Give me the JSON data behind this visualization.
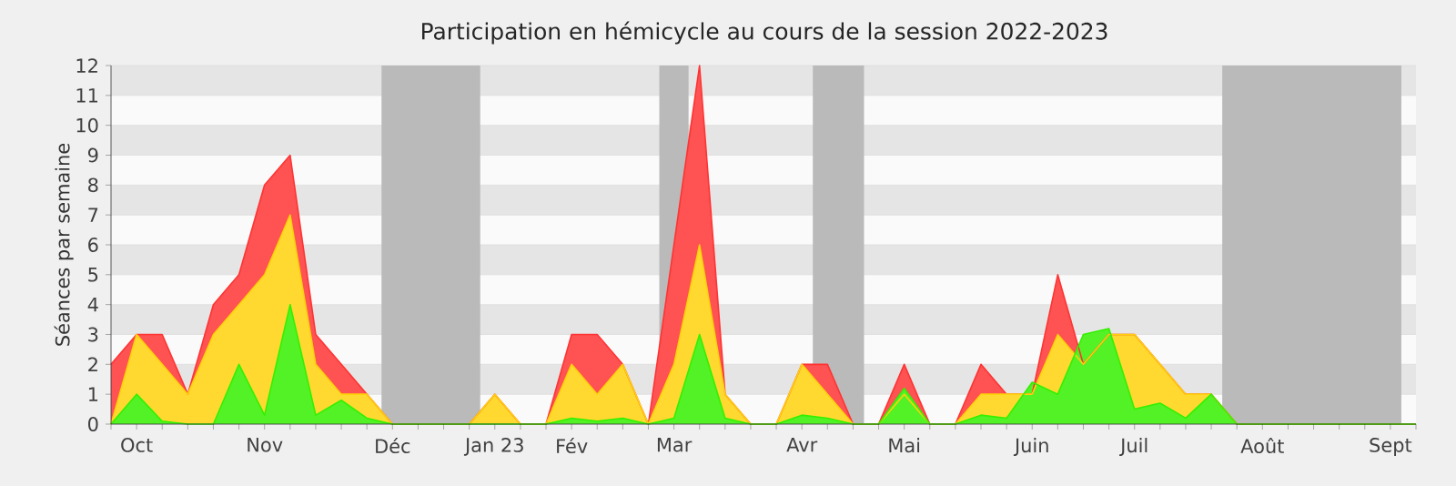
{
  "chart_data": {
    "type": "area",
    "title": "Participation en hémicycle au cours de la session 2022-2023",
    "ylabel": "Séances par semaine",
    "x": [
      "2022-09-28",
      "2022-10-05",
      "2022-10-12",
      "2022-10-19",
      "2022-10-26",
      "2022-11-02",
      "2022-11-09",
      "2022-11-16",
      "2022-11-23",
      "2022-11-30",
      "2022-12-07",
      "2022-12-14",
      "2022-12-21",
      "2022-12-28",
      "2023-01-04",
      "2023-01-11",
      "2023-01-18",
      "2023-01-25",
      "2023-02-01",
      "2023-02-08",
      "2023-02-15",
      "2023-02-22",
      "2023-03-01",
      "2023-03-08",
      "2023-03-15",
      "2023-03-22",
      "2023-03-29",
      "2023-04-05",
      "2023-04-12",
      "2023-04-19",
      "2023-04-26",
      "2023-05-03",
      "2023-05-10",
      "2023-05-17",
      "2023-05-24",
      "2023-05-31",
      "2023-06-07",
      "2023-06-14",
      "2023-06-21",
      "2023-06-28",
      "2023-07-05",
      "2023-07-12",
      "2023-07-19",
      "2023-07-26",
      "2023-08-02",
      "2023-08-09",
      "2023-08-16",
      "2023-08-23",
      "2023-08-30",
      "2023-09-06",
      "2023-09-13",
      "2023-09-20"
    ],
    "series": [
      {
        "color": "#ff3333",
        "values": [
          2,
          3,
          3,
          1,
          4,
          5,
          8,
          9,
          3,
          2,
          1,
          0,
          0,
          0,
          0,
          1,
          0,
          0,
          3,
          3,
          2,
          0,
          6,
          12,
          1,
          0,
          0,
          2,
          2,
          0,
          0,
          2,
          0,
          0,
          2,
          1,
          1,
          5,
          2,
          3,
          3,
          2,
          1,
          1,
          0,
          0,
          0,
          0,
          0,
          0,
          0,
          0
        ]
      },
      {
        "color": "#ffd20a",
        "values": [
          0,
          3,
          2,
          1,
          3,
          4,
          5,
          7,
          2,
          1,
          1,
          0,
          0,
          0,
          0,
          1,
          0,
          0,
          2,
          1,
          2,
          0,
          2,
          6,
          1,
          0,
          0,
          2,
          1,
          0,
          0,
          1,
          0,
          0,
          1,
          1,
          1,
          3,
          2,
          3,
          3,
          2,
          1,
          1,
          0,
          0,
          0,
          0,
          0,
          0,
          0,
          0
        ]
      },
      {
        "color": "#33f000",
        "values": [
          0,
          1,
          0.1,
          0,
          0,
          2,
          0.3,
          4,
          0.3,
          0.8,
          0.2,
          0,
          0,
          0,
          0,
          0,
          0,
          0,
          0.2,
          0.1,
          0.2,
          0,
          0.2,
          3,
          0.2,
          0,
          0,
          0.3,
          0.2,
          0,
          0,
          1.2,
          0,
          0,
          0.3,
          0.2,
          1.4,
          1,
          3,
          3.2,
          0.5,
          0.7,
          0.2,
          1,
          0,
          0,
          0,
          0,
          0,
          0,
          0,
          0
        ]
      }
    ],
    "xlim": [
      "2022-09-28",
      "2023-09-20"
    ],
    "xticks": [
      {
        "value": "2022-09-28",
        "label": null
      },
      {
        "value": "2022-10-05",
        "label": "Oct"
      },
      {
        "value": "2022-10-12",
        "label": null
      },
      {
        "value": "2022-10-19",
        "label": null
      },
      {
        "value": "2022-10-26",
        "label": null
      },
      {
        "value": "2022-11-02",
        "label": null
      },
      {
        "value": "2022-11-09",
        "label": "Nov"
      },
      {
        "value": "2022-11-16",
        "label": null
      },
      {
        "value": "2022-11-23",
        "label": null
      },
      {
        "value": "2022-11-30",
        "label": null
      },
      {
        "value": "2022-12-07",
        "label": null
      },
      {
        "value": "2022-12-14",
        "label": "Déc"
      },
      {
        "value": "2022-12-21",
        "label": null
      },
      {
        "value": "2022-12-28",
        "label": null
      },
      {
        "value": "2023-01-04",
        "label": null
      },
      {
        "value": "2023-01-11",
        "label": "Jan 23"
      },
      {
        "value": "2023-01-18",
        "label": null
      },
      {
        "value": "2023-01-25",
        "label": null
      },
      {
        "value": "2023-02-01",
        "label": "Fév"
      },
      {
        "value": "2023-02-08",
        "label": null
      },
      {
        "value": "2023-02-15",
        "label": null
      },
      {
        "value": "2023-02-22",
        "label": null
      },
      {
        "value": "2023-03-01",
        "label": "Mar"
      },
      {
        "value": "2023-03-08",
        "label": null
      },
      {
        "value": "2023-03-15",
        "label": null
      },
      {
        "value": "2023-03-22",
        "label": null
      },
      {
        "value": "2023-03-29",
        "label": null
      },
      {
        "value": "2023-04-05",
        "label": "Avr"
      },
      {
        "value": "2023-04-12",
        "label": null
      },
      {
        "value": "2023-04-19",
        "label": null
      },
      {
        "value": "2023-04-26",
        "label": null
      },
      {
        "value": "2023-05-03",
        "label": "Mai"
      },
      {
        "value": "2023-05-10",
        "label": null
      },
      {
        "value": "2023-05-17",
        "label": null
      },
      {
        "value": "2023-05-24",
        "label": null
      },
      {
        "value": "2023-05-31",
        "label": null
      },
      {
        "value": "2023-06-07",
        "label": "Juin"
      },
      {
        "value": "2023-06-14",
        "label": null
      },
      {
        "value": "2023-06-21",
        "label": null
      },
      {
        "value": "2023-06-28",
        "label": null
      },
      {
        "value": "2023-07-05",
        "label": "Juil"
      },
      {
        "value": "2023-07-12",
        "label": null
      },
      {
        "value": "2023-07-19",
        "label": null
      },
      {
        "value": "2023-07-26",
        "label": null
      },
      {
        "value": "2023-08-02",
        "label": null
      },
      {
        "value": "2023-08-09",
        "label": "Août"
      },
      {
        "value": "2023-08-16",
        "label": null
      },
      {
        "value": "2023-08-23",
        "label": null
      },
      {
        "value": "2023-08-30",
        "label": null
      },
      {
        "value": "2023-09-06",
        "label": null
      },
      {
        "value": "2023-09-13",
        "label": "Sept"
      },
      {
        "value": "2023-09-20",
        "label": null
      }
    ],
    "ylim": [
      0,
      12
    ],
    "yticks": [
      0,
      1,
      2,
      3,
      4,
      5,
      6,
      7,
      8,
      9,
      10,
      11,
      12
    ],
    "grid": "y",
    "bands": [
      {
        "axis": "x",
        "from": "2022-12-11",
        "to": "2023-01-07",
        "color": "#bababa"
      },
      {
        "axis": "x",
        "from": "2023-02-25",
        "to": "2023-03-05",
        "color": "#bababa"
      },
      {
        "axis": "x",
        "from": "2023-04-08",
        "to": "2023-04-22",
        "color": "#bababa"
      },
      {
        "axis": "x",
        "from": "2023-07-29",
        "to": "2023-09-16",
        "color": "#bababa"
      }
    ]
  }
}
